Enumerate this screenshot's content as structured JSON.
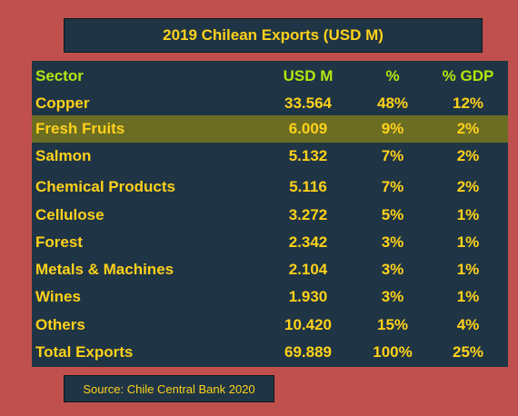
{
  "title": "2019 Chilean Exports (USD M)",
  "table": {
    "headers": [
      "Sector",
      "USD M",
      "%",
      "% GDP"
    ],
    "rows": [
      [
        "Copper",
        "33.564",
        "48%",
        "12%"
      ],
      [
        "Fresh Fruits",
        "6.009",
        "9%",
        "2%"
      ],
      [
        "Salmon",
        "5.132",
        "7%",
        "2%"
      ],
      [
        "Chemical Products",
        "5.116",
        "7%",
        "2%"
      ],
      [
        "Cellulose",
        "3.272",
        "5%",
        "1%"
      ],
      [
        "Forest",
        "2.342",
        "3%",
        "1%"
      ],
      [
        "Metals & Machines",
        "2.104",
        "3%",
        "1%"
      ],
      [
        "Wines",
        "1.930",
        "3%",
        "1%"
      ],
      [
        "Others",
        "10.420",
        "15%",
        "4%"
      ],
      [
        "Total Exports",
        "69.889",
        "100%",
        "25%"
      ]
    ],
    "highlighted_row": "Fresh Fruits"
  },
  "source": "Source: Chile Central Bank 2020",
  "colors": {
    "background": "#c0504d",
    "panel": "#1f3545",
    "text": "#ffd11a",
    "header_text": "#b4e60f",
    "highlight": "#6b6d22"
  }
}
